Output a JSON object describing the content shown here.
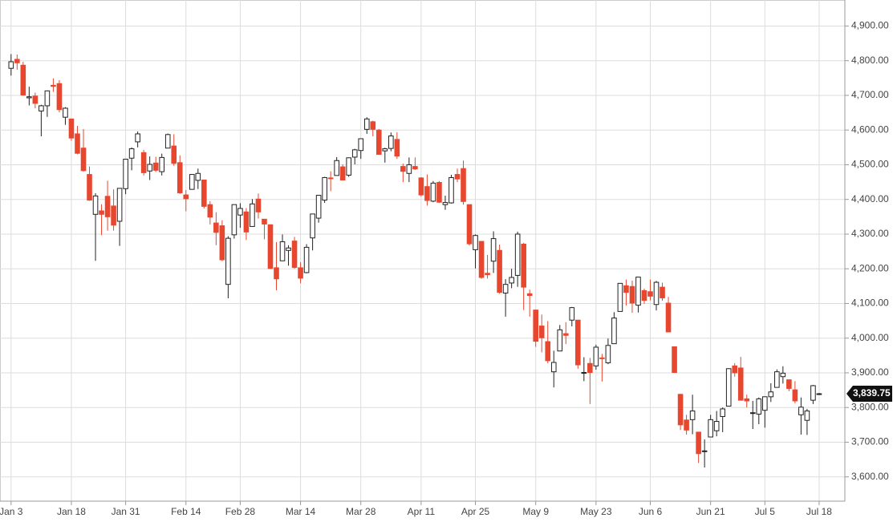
{
  "chart_data": {
    "type": "candlestick",
    "up_color": "#ffffff",
    "down_color": "#e8472f",
    "grid": true,
    "ylim": [
      3530,
      4975
    ],
    "yticks": [
      {
        "value": 3600,
        "label": "3,600.00"
      },
      {
        "value": 3700,
        "label": "3,700.00"
      },
      {
        "value": 3800,
        "label": "3,800.00"
      },
      {
        "value": 3900,
        "label": "3,900.00"
      },
      {
        "value": 4000,
        "label": "4,000.00"
      },
      {
        "value": 4100,
        "label": "4,100.00"
      },
      {
        "value": 4200,
        "label": "4,200.00"
      },
      {
        "value": 4300,
        "label": "4,300.00"
      },
      {
        "value": 4400,
        "label": "4,400.00"
      },
      {
        "value": 4500,
        "label": "4,500.00"
      },
      {
        "value": 4600,
        "label": "4,600.00"
      },
      {
        "value": 4700,
        "label": "4,700.00"
      },
      {
        "value": 4800,
        "label": "4,800.00"
      },
      {
        "value": 4900,
        "label": "4,900.00"
      }
    ],
    "last_price": {
      "value": 3839.75,
      "label": "3,839.75"
    },
    "categories": [
      "Jan 3",
      null,
      null,
      null,
      null,
      null,
      null,
      null,
      null,
      null,
      "Jan 18",
      null,
      null,
      null,
      null,
      null,
      null,
      null,
      null,
      "Jan 31",
      null,
      null,
      null,
      null,
      null,
      null,
      null,
      null,
      null,
      "Feb 14",
      null,
      null,
      null,
      null,
      null,
      null,
      null,
      null,
      "Feb 28",
      null,
      null,
      null,
      null,
      null,
      null,
      null,
      null,
      null,
      "Mar 14",
      null,
      null,
      null,
      null,
      null,
      null,
      null,
      null,
      null,
      "Mar 28",
      null,
      null,
      null,
      null,
      null,
      null,
      null,
      null,
      null,
      "Apr 11",
      null,
      null,
      null,
      null,
      null,
      null,
      null,
      null,
      "Apr 25",
      null,
      null,
      null,
      null,
      null,
      null,
      null,
      null,
      null,
      "May 9",
      null,
      null,
      null,
      null,
      null,
      null,
      null,
      null,
      null,
      "May 23",
      null,
      null,
      null,
      null,
      null,
      null,
      null,
      null,
      "Jun 6",
      null,
      null,
      null,
      null,
      null,
      null,
      null,
      null,
      null,
      "Jun 21",
      null,
      null,
      null,
      null,
      null,
      null,
      null,
      null,
      "Jul 5",
      null,
      null,
      null,
      null,
      null,
      null,
      null,
      null,
      "Jul 18"
    ],
    "ohlc": [
      [
        4778,
        4819,
        4757,
        4797
      ],
      [
        4804,
        4818,
        4774,
        4794
      ],
      [
        4787,
        4797,
        4699,
        4701
      ],
      [
        4693,
        4725,
        4671,
        4696
      ],
      [
        4698,
        4708,
        4663,
        4677
      ],
      [
        4655,
        4673,
        4582,
        4670
      ],
      [
        4670,
        4714,
        4638,
        4713
      ],
      [
        4729,
        4749,
        4710,
        4726
      ],
      [
        4734,
        4744,
        4651,
        4659
      ],
      [
        4637,
        4666,
        4615,
        4663
      ],
      [
        4632,
        4632,
        4569,
        4577
      ],
      [
        4589,
        4612,
        4530,
        4533
      ],
      [
        4548,
        4603,
        4480,
        4483
      ],
      [
        4472,
        4495,
        4396,
        4398
      ],
      [
        4357,
        4418,
        4223,
        4410
      ],
      [
        4367,
        4386,
        4297,
        4357
      ],
      [
        4409,
        4454,
        4310,
        4350
      ],
      [
        4381,
        4429,
        4310,
        4326
      ],
      [
        4337,
        4432,
        4266,
        4432
      ],
      [
        4431,
        4517,
        4415,
        4516
      ],
      [
        4519,
        4550,
        4484,
        4546
      ],
      [
        4566,
        4596,
        4550,
        4589
      ],
      [
        4535,
        4543,
        4469,
        4477
      ],
      [
        4482,
        4524,
        4456,
        4501
      ],
      [
        4505,
        4523,
        4479,
        4484
      ],
      [
        4480,
        4532,
        4469,
        4521
      ],
      [
        4548,
        4590,
        4548,
        4587
      ],
      [
        4554,
        4588,
        4497,
        4504
      ],
      [
        4506,
        4527,
        4416,
        4419
      ],
      [
        4413,
        4427,
        4366,
        4402
      ],
      [
        4429,
        4473,
        4429,
        4472
      ],
      [
        4455,
        4489,
        4430,
        4475
      ],
      [
        4456,
        4457,
        4374,
        4380
      ],
      [
        4385,
        4395,
        4328,
        4349
      ],
      [
        4332,
        4363,
        4268,
        4305
      ],
      [
        4324,
        4340,
        4222,
        4226
      ],
      [
        4155,
        4294,
        4115,
        4288
      ],
      [
        4298,
        4385,
        4287,
        4385
      ],
      [
        4355,
        4389,
        4318,
        4374
      ],
      [
        4364,
        4375,
        4283,
        4306
      ],
      [
        4322,
        4401,
        4322,
        4387
      ],
      [
        4401,
        4417,
        4345,
        4364
      ],
      [
        4343,
        4343,
        4285,
        4329
      ],
      [
        4327,
        4327,
        4199,
        4201
      ],
      [
        4203,
        4277,
        4138,
        4171
      ],
      [
        4223,
        4299,
        4223,
        4278
      ],
      [
        4253,
        4268,
        4209,
        4260
      ],
      [
        4280,
        4292,
        4200,
        4204
      ],
      [
        4203,
        4219,
        4158,
        4173
      ],
      [
        4189,
        4271,
        4187,
        4262
      ],
      [
        4289,
        4358,
        4253,
        4358
      ],
      [
        4346,
        4413,
        4333,
        4412
      ],
      [
        4398,
        4465,
        4390,
        4463
      ],
      [
        4462,
        4481,
        4424,
        4461
      ],
      [
        4469,
        4522,
        4469,
        4512
      ],
      [
        4494,
        4501,
        4455,
        4456
      ],
      [
        4470,
        4521,
        4465,
        4520
      ],
      [
        4522,
        4546,
        4501,
        4543
      ],
      [
        4541,
        4576,
        4517,
        4575
      ],
      [
        4602,
        4637,
        4589,
        4632
      ],
      [
        4624,
        4627,
        4582,
        4602
      ],
      [
        4600,
        4603,
        4530,
        4530
      ],
      [
        4540,
        4549,
        4506,
        4546
      ],
      [
        4547,
        4593,
        4539,
        4583
      ],
      [
        4573,
        4594,
        4517,
        4525
      ],
      [
        4495,
        4503,
        4450,
        4481
      ],
      [
        4475,
        4521,
        4450,
        4500
      ],
      [
        4495,
        4521,
        4485,
        4488
      ],
      [
        4462,
        4464,
        4408,
        4413
      ],
      [
        4437,
        4472,
        4382,
        4397
      ],
      [
        4395,
        4453,
        4392,
        4447
      ],
      [
        4449,
        4453,
        4390,
        4392
      ],
      [
        4385,
        4411,
        4370,
        4391
      ],
      [
        4390,
        4471,
        4388,
        4463
      ],
      [
        4472,
        4489,
        4450,
        4459
      ],
      [
        4489,
        4512,
        4385,
        4394
      ],
      [
        4385,
        4385,
        4267,
        4272
      ],
      [
        4255,
        4299,
        4201,
        4296
      ],
      [
        4279,
        4279,
        4171,
        4175
      ],
      [
        4187,
        4240,
        4172,
        4183
      ],
      [
        4222,
        4308,
        4188,
        4287
      ],
      [
        4253,
        4270,
        4128,
        4132
      ],
      [
        4130,
        4170,
        4062,
        4155
      ],
      [
        4159,
        4200,
        4144,
        4175
      ],
      [
        4181,
        4307,
        4148,
        4300
      ],
      [
        4271,
        4275,
        4081,
        4147
      ],
      [
        4128,
        4140,
        4062,
        4123
      ],
      [
        4081,
        4082,
        3975,
        3991
      ],
      [
        4035,
        4068,
        3959,
        4001
      ],
      [
        3990,
        4049,
        3928,
        3935
      ],
      [
        3903,
        3964,
        3858,
        3930
      ],
      [
        3963,
        4038,
        3963,
        4024
      ],
      [
        4013,
        4046,
        3983,
        4008
      ],
      [
        4052,
        4090,
        4034,
        4088
      ],
      [
        4052,
        4052,
        3912,
        3923
      ],
      [
        3899,
        3945,
        3876,
        3901
      ],
      [
        3927,
        3943,
        3810,
        3901
      ],
      [
        3920,
        3981,
        3909,
        3974
      ],
      [
        3943,
        3955,
        3875,
        3941
      ],
      [
        3929,
        3999,
        3925,
        3979
      ],
      [
        3984,
        4075,
        3984,
        4058
      ],
      [
        4077,
        4158,
        4077,
        4158
      ],
      [
        4151,
        4169,
        4094,
        4132
      ],
      [
        4149,
        4166,
        4073,
        4101
      ],
      [
        4095,
        4177,
        4074,
        4176
      ],
      [
        4137,
        4143,
        4099,
        4109
      ],
      [
        4134,
        4169,
        4109,
        4121
      ],
      [
        4097,
        4165,
        4080,
        4161
      ],
      [
        4147,
        4160,
        4108,
        4116
      ],
      [
        4101,
        4119,
        4017,
        4018
      ],
      [
        3975,
        3975,
        3900,
        3901
      ],
      [
        3838,
        3839,
        3735,
        3750
      ],
      [
        3764,
        3779,
        3722,
        3735
      ],
      [
        3765,
        3837,
        3723,
        3790
      ],
      [
        3729,
        3729,
        3640,
        3667
      ],
      [
        3675,
        3708,
        3627,
        3675
      ],
      [
        3715,
        3779,
        3715,
        3765
      ],
      [
        3733,
        3790,
        3717,
        3760
      ],
      [
        3774,
        3800,
        3729,
        3796
      ],
      [
        3804,
        3913,
        3804,
        3912
      ],
      [
        3920,
        3928,
        3889,
        3900
      ],
      [
        3914,
        3946,
        3820,
        3821
      ],
      [
        3825,
        3837,
        3800,
        3819
      ],
      [
        3785,
        3819,
        3738,
        3785
      ],
      [
        3781,
        3829,
        3752,
        3825
      ],
      [
        3792,
        3832,
        3742,
        3831
      ],
      [
        3831,
        3870,
        3816,
        3845
      ],
      [
        3858,
        3910,
        3858,
        3903
      ],
      [
        3889,
        3919,
        3869,
        3899
      ],
      [
        3880,
        3880,
        3847,
        3855
      ],
      [
        3851,
        3876,
        3812,
        3819
      ],
      [
        3779,
        3829,
        3722,
        3801
      ],
      [
        3763,
        3796,
        3721,
        3790
      ],
      [
        3821,
        3865,
        3810,
        3863
      ],
      [
        3838,
        3842,
        3836,
        3839.75
      ]
    ]
  }
}
